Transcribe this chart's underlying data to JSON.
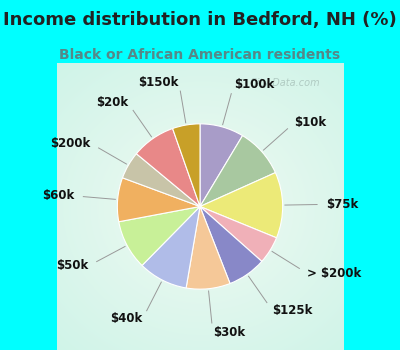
{
  "title": "Income distribution in Bedford, NH (%)",
  "subtitle": "Black or African American residents",
  "bg_cyan": "#00ffff",
  "bg_chart": "#e0f5ee",
  "slices": [
    {
      "label": "$100k",
      "value": 8,
      "color": "#a89cc8"
    },
    {
      "label": "$10k",
      "value": 9,
      "color": "#a8c8a0"
    },
    {
      "label": "$75k",
      "value": 12,
      "color": "#ecea78"
    },
    {
      "label": "> $200k",
      "value": 5,
      "color": "#f0b0b8"
    },
    {
      "label": "$125k",
      "value": 7,
      "color": "#8888c8"
    },
    {
      "label": "$30k",
      "value": 8,
      "color": "#f5c898"
    },
    {
      "label": "$40k",
      "value": 9,
      "color": "#b0bce8"
    },
    {
      "label": "$50k",
      "value": 9,
      "color": "#c8f098"
    },
    {
      "label": "$60k",
      "value": 8,
      "color": "#f0b060"
    },
    {
      "label": "$200k",
      "value": 5,
      "color": "#c8c4a8"
    },
    {
      "label": "$20k",
      "value": 8,
      "color": "#e88888"
    },
    {
      "label": "$150k",
      "value": 5,
      "color": "#c8a028"
    }
  ],
  "title_fontsize": 13,
  "subtitle_fontsize": 10,
  "label_fontsize": 8.5
}
